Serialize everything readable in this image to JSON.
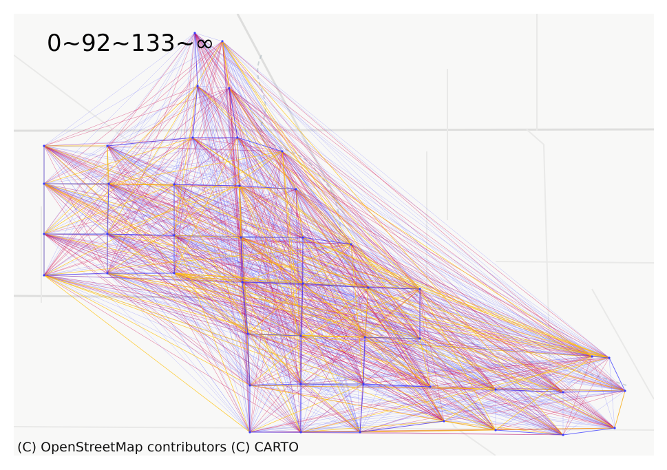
{
  "legend": {
    "title": "0~92~133~∞"
  },
  "attribution": "(C) OpenStreetMap contributors (C) CARTO",
  "colors": {
    "background": "#f8f8f7",
    "road": "#e9e9e8",
    "road_dark": "#dededd",
    "river": "#a9b8bf",
    "low": "#3b3bff",
    "mid": "#d2145a",
    "high": "#ffc000"
  },
  "nodes": [
    "n0",
    "n1",
    "n2",
    "n3",
    "n4",
    "n5",
    "n6",
    "n7",
    "n8",
    "n9",
    "n10",
    "n11",
    "n12",
    "n13",
    "n14",
    "n15",
    "n16",
    "n17",
    "n18",
    "n19",
    "n20",
    "n21",
    "n22",
    "n23",
    "n24",
    "n25",
    "n26",
    "n27",
    "n28",
    "n29",
    "n30",
    "n31",
    "n32",
    "n33",
    "n34",
    "n35",
    "n36",
    "n37",
    "n38",
    "n39",
    "n40",
    "n41",
    "n42",
    "n43",
    "n44",
    "n45",
    "n46"
  ]
}
